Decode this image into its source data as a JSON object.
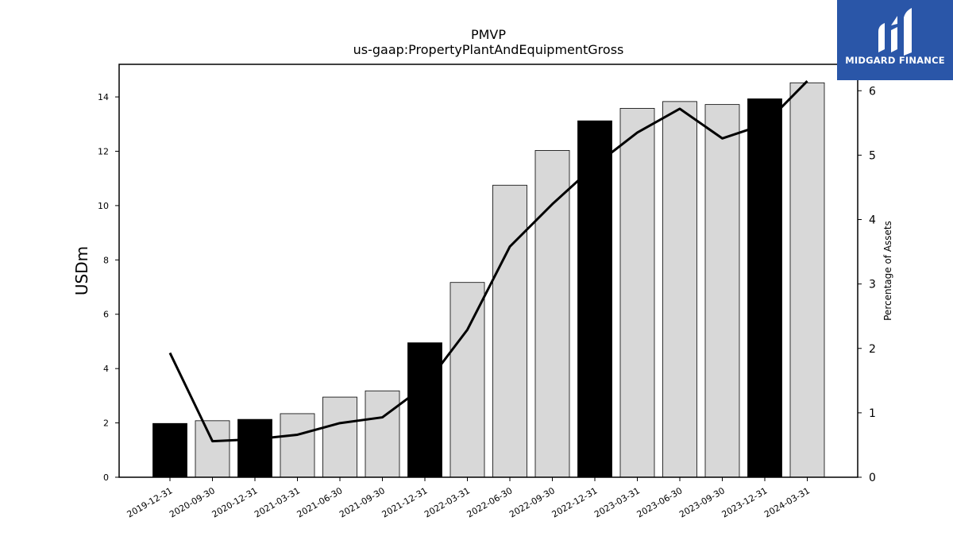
{
  "chart_data": {
    "type": "bar",
    "title": "PMVP",
    "subtitle": "us-gaap:PropertyPlantAndEquipmentGross",
    "ylabel": "USDm",
    "y2label": "Percentage of Assets",
    "ylim": [
      0,
      15.2
    ],
    "y2lim": [
      0,
      6.41
    ],
    "yticks": [
      0,
      2,
      4,
      6,
      8,
      10,
      12,
      14
    ],
    "y2ticks": [
      0,
      1,
      2,
      3,
      4,
      5,
      6
    ],
    "categories": [
      "2019-12-31",
      "2020-09-30",
      "2020-12-31",
      "2021-03-31",
      "2021-06-30",
      "2021-09-30",
      "2021-12-31",
      "2022-03-31",
      "2022-06-30",
      "2022-09-30",
      "2022-12-31",
      "2023-03-31",
      "2023-06-30",
      "2023-09-30",
      "2023-12-31",
      "2024-03-31"
    ],
    "series": [
      {
        "type": "bar",
        "values": [
          1.98,
          2.08,
          2.13,
          2.34,
          2.95,
          3.18,
          4.95,
          7.17,
          10.75,
          12.03,
          13.12,
          13.58,
          13.83,
          13.72,
          13.93,
          14.52
        ],
        "fiscal_year_end": [
          true,
          false,
          true,
          false,
          false,
          false,
          true,
          false,
          false,
          false,
          true,
          false,
          false,
          false,
          true,
          false
        ]
      },
      {
        "type": "line",
        "axis": "right",
        "values": [
          1.93,
          0.56,
          0.59,
          0.66,
          0.84,
          0.93,
          1.42,
          2.29,
          3.58,
          4.24,
          4.84,
          5.35,
          5.72,
          5.26,
          5.48,
          6.15
        ]
      }
    ],
    "colors": {
      "highlight_bar": "#000000",
      "regular_bar": "#d8d8d8",
      "bar_edge": "#000000",
      "line": "#000000"
    },
    "grid": false
  },
  "logo": {
    "text": "MIDGARD FINANCE",
    "icon": "midgard-logo-icon",
    "color": "#2a56a8"
  }
}
